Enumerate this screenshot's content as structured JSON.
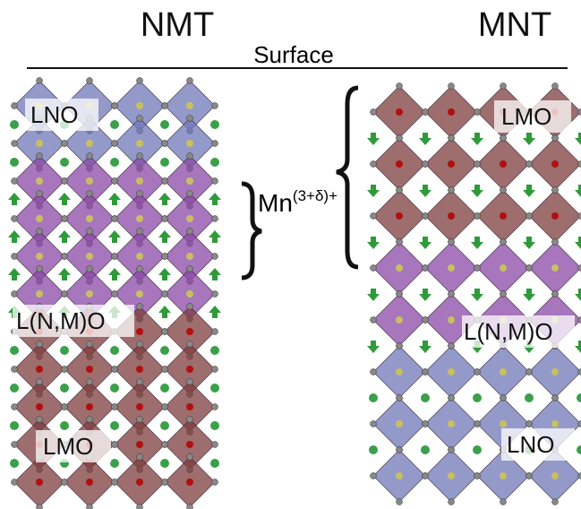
{
  "left_panel": {
    "title": "NMT",
    "labels": [
      "LNO",
      "L(N,M)O",
      "LMO"
    ]
  },
  "right_panel": {
    "title": "MNT",
    "labels": [
      "LMO",
      "L(N,M)O",
      "LNO"
    ]
  },
  "surface": "Surface",
  "annotation": {
    "base": "Mn",
    "superscript": "(3+δ)+"
  }
}
